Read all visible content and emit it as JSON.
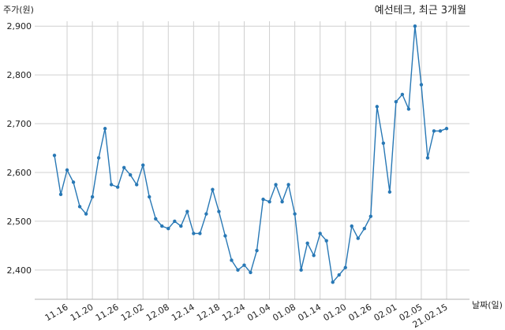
{
  "chart_data": {
    "type": "line",
    "title": "예선테크, 최근 3개월",
    "ylabel": "주가(원)",
    "xlabel": "날짜(일)",
    "ylim": [
      2340,
      2910
    ],
    "yticks": [
      2400,
      2500,
      2600,
      2700,
      2800,
      2900
    ],
    "ytick_labels": [
      "2,400",
      "2,500",
      "2,600",
      "2,700",
      "2,800",
      "2,900"
    ],
    "xtick_labels": [
      "11.16",
      "11.20",
      "11.26",
      "12.02",
      "12.08",
      "12.14",
      "12.18",
      "12.24",
      "01.04",
      "01.08",
      "01.14",
      "01.20",
      "01.26",
      "02.01",
      "02.05",
      "21.02.15"
    ],
    "xtick_indices": [
      2,
      6,
      10,
      14,
      18,
      22,
      26,
      30,
      34,
      38,
      42,
      46,
      50,
      54,
      58,
      62
    ],
    "grid": true,
    "series": [
      {
        "color": "#2878b5",
        "values": [
          2635,
          2555,
          2605,
          2580,
          2530,
          2515,
          2550,
          2630,
          2690,
          2575,
          2570,
          2610,
          2595,
          2575,
          2615,
          2550,
          2505,
          2490,
          2485,
          2500,
          2490,
          2520,
          2475,
          2475,
          2515,
          2565,
          2520,
          2470,
          2420,
          2400,
          2410,
          2395,
          2440,
          2545,
          2540,
          2575,
          2540,
          2575,
          2515,
          2400,
          2455,
          2430,
          2475,
          2460,
          2375,
          2390,
          2405,
          2490,
          2465,
          2485,
          2510,
          2735,
          2660,
          2560,
          2745,
          2760,
          2730,
          2900,
          2780,
          2630,
          2685,
          2685,
          2690
        ]
      }
    ]
  }
}
